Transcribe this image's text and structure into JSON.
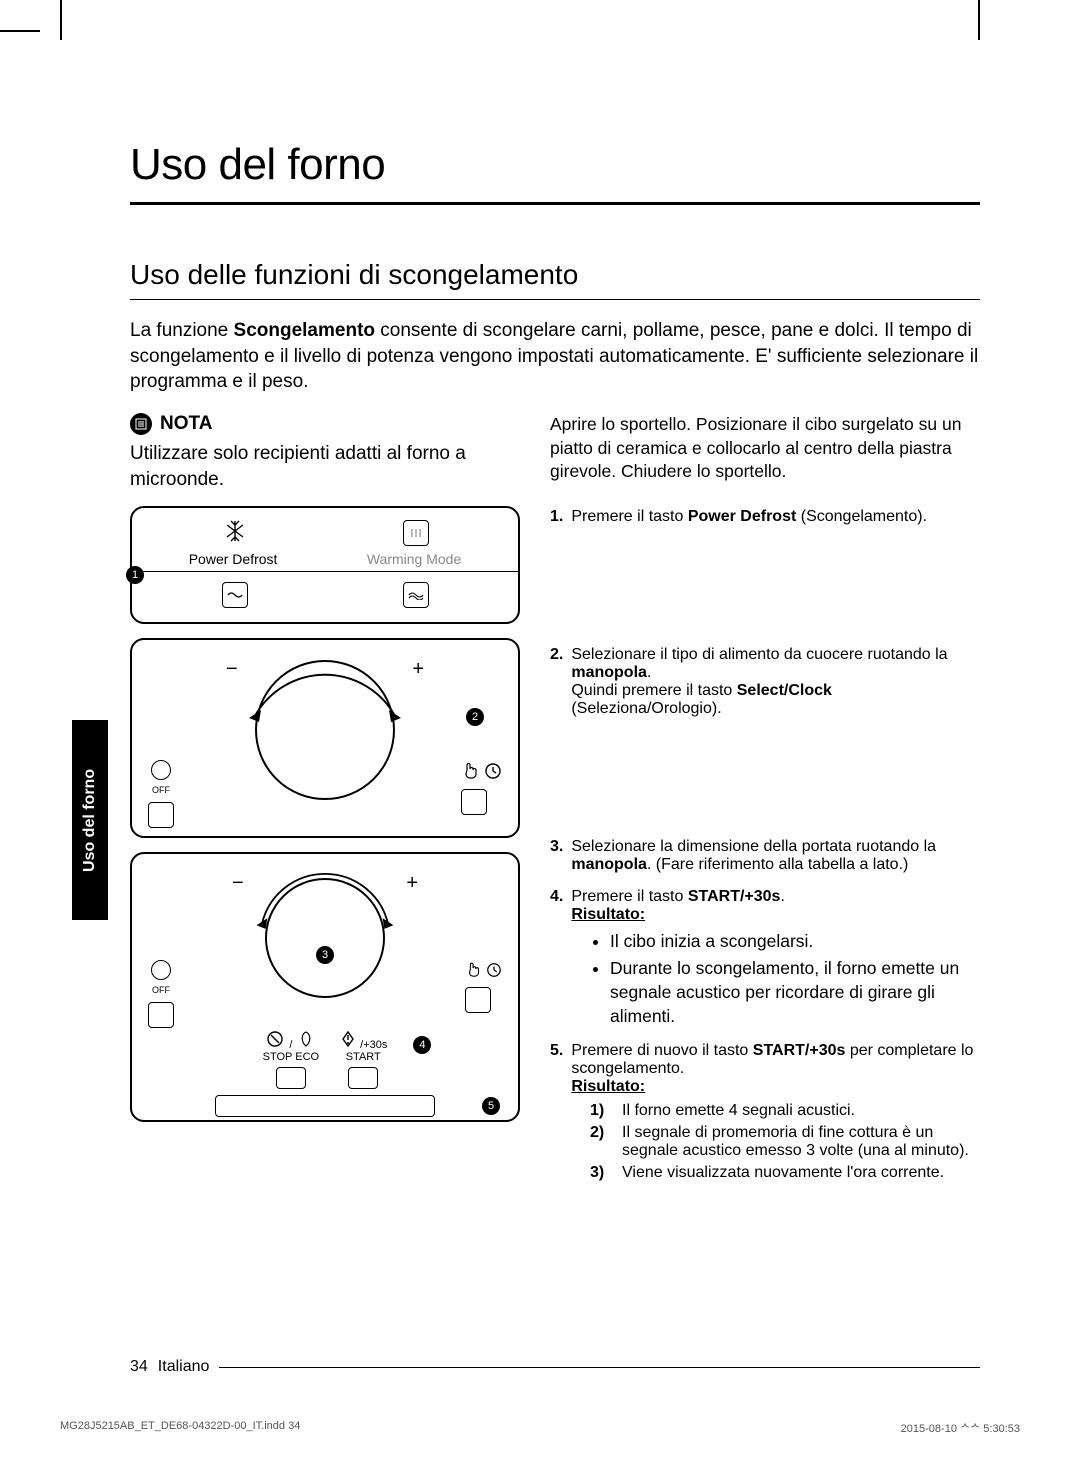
{
  "cropmarks": true,
  "main_title": "Uso del forno",
  "section_title": "Uso delle funzioni di scongelamento",
  "intro": "La funzione <b>Scongelamento</b> consente di scongelare carni, pollame, pesce, pane e dolci. Il tempo di scongelamento e il livello di potenza vengono impostati automaticamente. E' sufficiente selezionare il programma e il peso.",
  "nota": {
    "label": "NOTA",
    "text": "Utilizzare solo recipienti adatti al forno a microonde."
  },
  "panel1": {
    "left_label": "Power Defrost",
    "right_label": "Warming Mode",
    "callout": "1"
  },
  "panel2": {
    "off_label": "OFF",
    "callout": "2"
  },
  "panel3": {
    "off_label": "OFF",
    "callout_dial": "3",
    "stop_label": "STOP",
    "eco_label": "ECO",
    "start_label": "START",
    "plus30": "/+30s",
    "callout_start": "4",
    "callout_long": "5"
  },
  "right": {
    "intro": "Aprire lo sportello. Posizionare il cibo surgelato su un piatto di ceramica e collocarlo al centro della piastra girevole. Chiudere lo sportello.",
    "step1": {
      "n": "1.",
      "text": "Premere il tasto <b>Power Defrost</b> (Scongelamento)."
    },
    "step2": {
      "n": "2.",
      "line1": "Selezionare il tipo di alimento da cuocere ruotando la <b>manopola</b>.",
      "line2": "Quindi premere il tasto <b>Select/Clock</b> (Seleziona/Orologio)."
    },
    "step3": {
      "n": "3.",
      "text": "Selezionare la dimensione della portata ruotando la <b>manopola</b>. (Fare riferimento alla tabella a lato.)"
    },
    "step4": {
      "n": "4.",
      "text": "Premere il tasto <b>START/+30s</b>.",
      "result_label": "Risultato:",
      "bullets": [
        "Il cibo inizia a scongelarsi.",
        "Durante lo scongelamento, il forno emette un segnale acustico per ricordare di girare gli alimenti."
      ]
    },
    "step5": {
      "n": "5.",
      "text": "Premere di nuovo il tasto <b>START/+30s</b> per completare lo scongelamento.",
      "result_label": "Risultato:",
      "items": [
        {
          "n": "1)",
          "text": "Il forno emette 4 segnali acustici."
        },
        {
          "n": "2)",
          "text": "Il segnale di promemoria di fine cottura è un segnale acustico emesso 3 volte (una al minuto)."
        },
        {
          "n": "3)",
          "text": "Viene visualizzata nuovamente l'ora corrente."
        }
      ]
    }
  },
  "side_tab": "Uso del forno",
  "footer": {
    "page": "34",
    "lang": "Italiano"
  },
  "print_footer": {
    "left": "MG28J5215AB_ET_DE68-04322D-00_IT.indd   34",
    "right": "2015-08-10   ᄉᄉ 5:30:53"
  }
}
